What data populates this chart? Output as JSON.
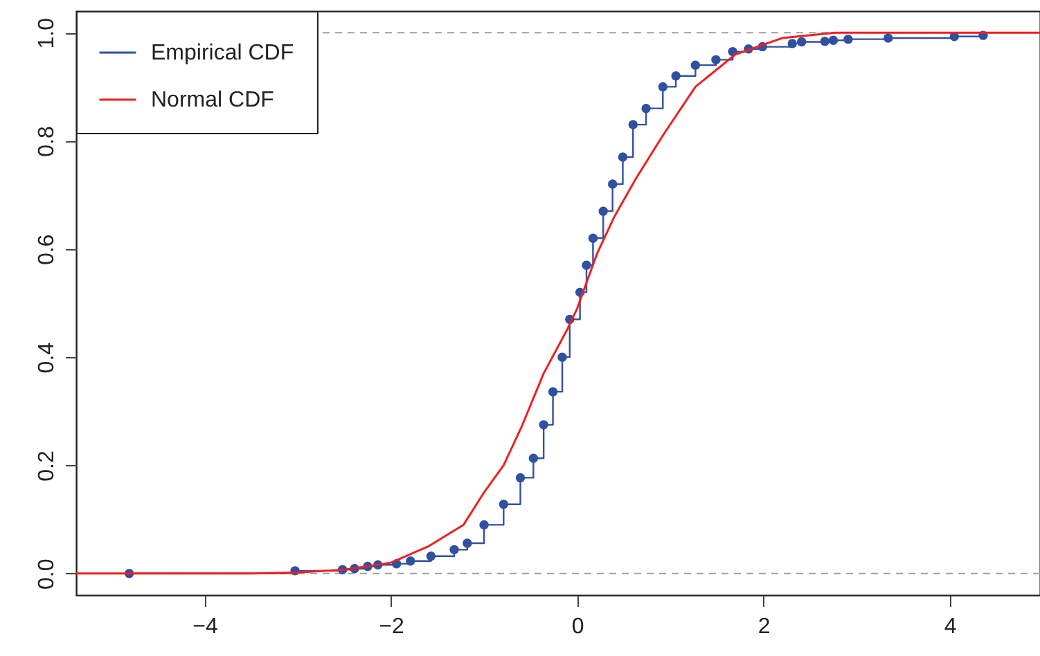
{
  "chart_data": {
    "type": "line",
    "xlim": [
      -5.38,
      4.97
    ],
    "xticks": [
      -4,
      -2,
      0,
      2,
      4
    ],
    "ylim": [
      -0.04,
      1.04
    ],
    "yticks": [
      {
        "value": 0,
        "label": "0.0"
      },
      0.2,
      0.4,
      0.6,
      0.8,
      {
        "value": 1,
        "label": "1.0"
      }
    ],
    "grid": false,
    "legend": "top left",
    "ref_lines": [
      {
        "axis": "y",
        "value": 0,
        "label": null,
        "color": "#a0a0a0",
        "line_style": "dashed"
      },
      {
        "axis": "y",
        "value": 1,
        "label": null,
        "color": "#a0a0a0",
        "line_style": "dashed"
      }
    ],
    "series": [
      {
        "name": "Empirical CDF",
        "type": "step",
        "marker": "circle",
        "color": "#3050a0",
        "x": [
          -4.81,
          -3.03,
          -2.52,
          -2.39,
          -2.25,
          -2.14,
          -1.94,
          -1.79,
          -1.57,
          -1.32,
          -1.18,
          -1.0,
          -0.79,
          -0.61,
          -0.47,
          -0.36,
          -0.26,
          -0.16,
          -0.08,
          0.03,
          0.1,
          0.17,
          0.28,
          0.38,
          0.49,
          0.6,
          0.74,
          0.92,
          1.06,
          1.27,
          1.49,
          1.67,
          1.84,
          1.99,
          2.31,
          2.41,
          2.66,
          2.75,
          2.91,
          3.34,
          4.05,
          4.36
        ],
        "values": [
          0.0,
          0.005,
          0.007,
          0.009,
          0.013,
          0.016,
          0.018,
          0.023,
          0.032,
          0.044,
          0.056,
          0.09,
          0.128,
          0.177,
          0.213,
          0.275,
          0.336,
          0.4,
          0.47,
          0.52,
          0.57,
          0.62,
          0.67,
          0.72,
          0.77,
          0.83,
          0.86,
          0.9,
          0.92,
          0.94,
          0.95,
          0.965,
          0.97,
          0.974,
          0.98,
          0.983,
          0.984,
          0.986,
          0.988,
          0.99,
          0.993,
          0.995
        ]
      },
      {
        "name": "Normal CDF",
        "type": "line",
        "marker": "none",
        "color": "#ee2020",
        "x": [
          -5.38,
          -3.5,
          -3.0,
          -2.5,
          -2.0,
          -1.6,
          -1.22,
          -1.0,
          -0.79,
          -0.6,
          -0.36,
          -0.11,
          0.0,
          0.21,
          0.4,
          0.63,
          0.92,
          1.27,
          1.7,
          2.2,
          2.77,
          3.5,
          4.97
        ],
        "values": [
          0.0,
          0.0,
          0.002,
          0.007,
          0.02,
          0.05,
          0.09,
          0.15,
          0.2,
          0.27,
          0.37,
          0.45,
          0.49,
          0.59,
          0.66,
          0.73,
          0.81,
          0.9,
          0.96,
          0.99,
          1.0,
          1.0,
          1.0
        ]
      }
    ]
  }
}
